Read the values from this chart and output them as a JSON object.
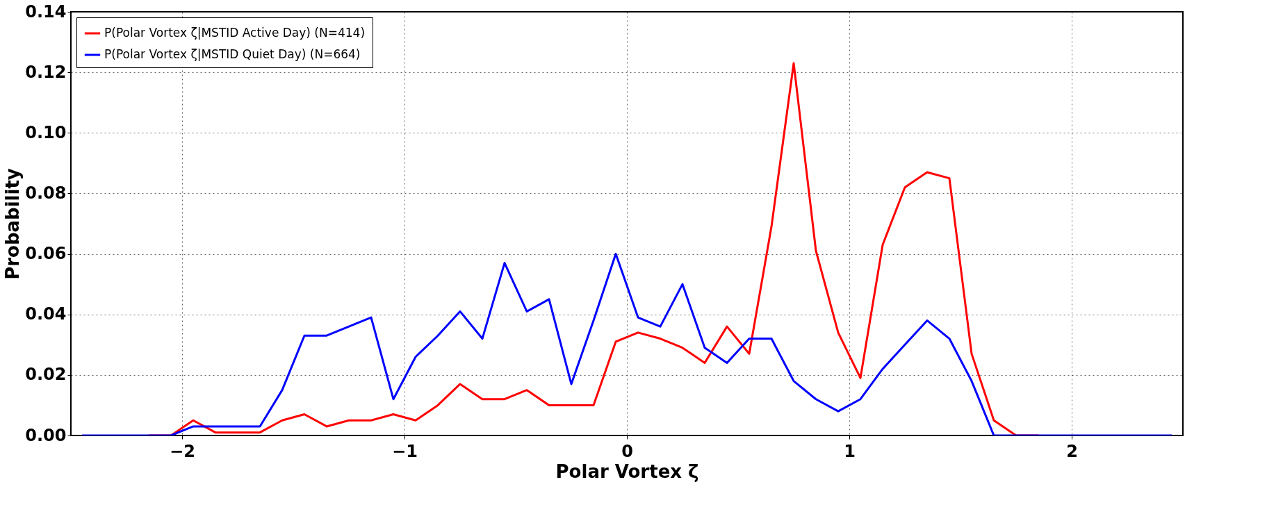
{
  "chart_data": {
    "type": "line",
    "xlabel": "Polar Vortex ζ",
    "ylabel": "Probability",
    "x": [
      -2.45,
      -2.35,
      -2.25,
      -2.15,
      -2.05,
      -1.95,
      -1.85,
      -1.75,
      -1.65,
      -1.55,
      -1.45,
      -1.35,
      -1.25,
      -1.15,
      -1.05,
      -0.95,
      -0.85,
      -0.75,
      -0.65,
      -0.55,
      -0.45,
      -0.35,
      -0.25,
      -0.15,
      -0.05,
      0.05,
      0.15,
      0.25,
      0.35,
      0.45,
      0.55,
      0.65,
      0.75,
      0.85,
      0.95,
      1.05,
      1.15,
      1.25,
      1.35,
      1.45,
      1.55,
      1.65,
      1.75,
      1.85,
      1.95,
      2.05,
      2.15,
      2.25,
      2.35,
      2.45
    ],
    "series": [
      {
        "name": "P(Polar Vortex ζ|MSTID Active Day) (N=414)",
        "color": "#ff0000",
        "values": [
          null,
          null,
          null,
          0,
          0,
          0.005,
          0.001,
          0.001,
          0.001,
          0.005,
          0.007,
          0.003,
          0.005,
          0.005,
          0.007,
          0.005,
          0.01,
          0.017,
          0.012,
          0.012,
          0.015,
          0.01,
          0.01,
          0.01,
          0.031,
          0.034,
          0.032,
          0.029,
          0.024,
          0.036,
          0.027,
          0.069,
          0.123,
          0.061,
          0.034,
          0.019,
          0.063,
          0.082,
          0.087,
          0.085,
          0.027,
          0.005,
          0,
          0,
          null,
          null,
          null,
          null,
          null,
          null
        ]
      },
      {
        "name": "P(Polar Vortex ζ|MSTID Quiet Day) (N=664)",
        "color": "#0000ff",
        "values": [
          0,
          0,
          0,
          0,
          0,
          0.003,
          0.003,
          0.003,
          0.003,
          0.015,
          0.033,
          0.033,
          0.036,
          0.039,
          0.012,
          0.026,
          0.033,
          0.041,
          0.032,
          0.057,
          0.041,
          0.045,
          0.017,
          0.038,
          0.06,
          0.039,
          0.036,
          0.05,
          0.029,
          0.024,
          0.032,
          0.032,
          0.018,
          0.012,
          0.008,
          0.012,
          0.022,
          0.03,
          0.038,
          0.032,
          0.018,
          0,
          0,
          0,
          0,
          0,
          0,
          0,
          0,
          0
        ]
      }
    ],
    "xlim": [
      -2.5,
      2.5
    ],
    "xticks": [
      {
        "value": -2,
        "label": "−2"
      },
      {
        "value": -1,
        "label": "−1"
      },
      0,
      1,
      2
    ],
    "ylim": [
      0,
      0.14
    ],
    "yticks": [
      {
        "value": 0,
        "label": "0.00"
      },
      {
        "value": 0.02,
        "label": "0.02"
      },
      {
        "value": 0.04,
        "label": "0.04"
      },
      {
        "value": 0.06,
        "label": "0.06"
      },
      {
        "value": 0.08,
        "label": "0.08"
      },
      {
        "value": 0.1,
        "label": "0.10"
      },
      {
        "value": 0.12,
        "label": "0.12"
      },
      {
        "value": 0.14,
        "label": "0.14"
      }
    ],
    "grid": true,
    "legend": "top left",
    "marker": "none",
    "line_style": "solid"
  }
}
